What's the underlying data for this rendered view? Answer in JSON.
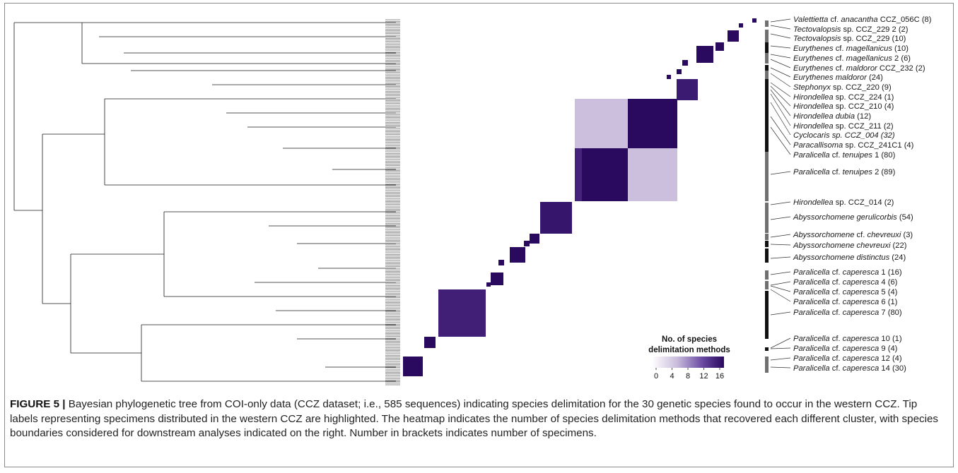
{
  "figure": {
    "caption_label": "FIGURE 5 |",
    "caption_text": " Bayesian phylogenetic tree from COI-only data (CCZ dataset; i.e., 585 sequences) indicating species delimitation for the 30 genetic species found to occur in the western CCZ. Tip labels representing specimens distributed in the western CCZ are highlighted. The heatmap indicates the number of species delimitation methods that recovered each different cluster, with species boundaries considered for downstream analyses indicated on the right. Number in brackets indicates number of specimens."
  },
  "colors": {
    "dark": "#2a0a5e",
    "mid": "#5d3a96",
    "light": "#cbbfdd",
    "line": "#1a1a1a",
    "bar_grey": "#707070",
    "bar_black": "#111111"
  },
  "legend": {
    "title_line1": "No. of species",
    "title_line2": "delimitation methods",
    "ticks": [
      "0",
      "4",
      "8",
      "12",
      "16"
    ],
    "range": [
      0,
      16
    ]
  },
  "species_labels": [
    {
      "italic": "Valettietta",
      "plain": " cf. ",
      "italic2": "anacantha",
      "rest": " CCZ_056C (8)"
    },
    {
      "italic": "Tectovalopsis",
      "plain": " sp. CCZ_229 2 (2)",
      "italic2": "",
      "rest": ""
    },
    {
      "italic": "Tectovalopsis",
      "plain": " sp. CCZ_229 (10)",
      "italic2": "",
      "rest": ""
    },
    {
      "italic": "Eurythenes",
      "plain": " cf. ",
      "italic2": "magellanicus",
      "rest": " (10)"
    },
    {
      "italic": "Eurythenes",
      "plain": " cf. ",
      "italic2": "magellanicus",
      "rest": " 2 (6)"
    },
    {
      "italic": "Eurythenes",
      "plain": " cf. ",
      "italic2": "maldoror",
      "rest": " CCZ_232 (2)"
    },
    {
      "italic": "Eurythenes maldoror",
      "plain": " (24)",
      "italic2": "",
      "rest": ""
    },
    {
      "italic": "Stephonyx",
      "plain": " sp. CCZ_220 (9)",
      "italic2": "",
      "rest": ""
    },
    {
      "italic": "Hirondellea",
      "plain": " sp. CCZ_224 (1)",
      "italic2": "",
      "rest": ""
    },
    {
      "italic": "Hirondellea",
      "plain": " sp. CCZ_210 (4)",
      "italic2": "",
      "rest": ""
    },
    {
      "italic": "Hirondellea dubia",
      "plain": " (12)",
      "italic2": "",
      "rest": ""
    },
    {
      "italic": "Hirondellea",
      "plain": " sp. CCZ_211 (2)",
      "italic2": "",
      "rest": ""
    },
    {
      "italic": "Cyclocaris sp. CCZ_004 (32)",
      "plain": "",
      "italic2": "",
      "rest": ""
    },
    {
      "italic": "Paracallisoma",
      "plain": " sp.  CCZ_241C1 (4)",
      "italic2": "",
      "rest": ""
    },
    {
      "italic": "Paralicella",
      "plain": " cf. ",
      "italic2": "tenuipes",
      "rest": " 1 (80)"
    },
    {
      "italic": "Paralicella",
      "plain": " cf. ",
      "italic2": "tenuipes",
      "rest": " 2 (89)"
    },
    {
      "italic": "Hirondellea",
      "plain": " sp. CCZ_014 (2)",
      "italic2": "",
      "rest": ""
    },
    {
      "italic": "Abyssorchomene gerulicorbis",
      "plain": " (54)",
      "italic2": "",
      "rest": ""
    },
    {
      "italic": "Abyssorchomene",
      "plain": " cf. ",
      "italic2": "chevreuxi",
      "rest": " (3)"
    },
    {
      "italic": "Abyssorchomene chevreuxi",
      "plain": " (22)",
      "italic2": "",
      "rest": ""
    },
    {
      "italic": "Abyssorchomene distinctus",
      "plain": " (24)",
      "italic2": "",
      "rest": ""
    },
    {
      "italic": "Paralicella",
      "plain": " cf. ",
      "italic2": "caperesca",
      "rest": " 1 (16)"
    },
    {
      "italic": "Paralicella",
      "plain": " cf. ",
      "italic2": "caperesca",
      "rest": " 4 (6)"
    },
    {
      "italic": "Paralicella",
      "plain": " cf. ",
      "italic2": "caperesca",
      "rest": " 5 (4)"
    },
    {
      "italic": "Paralicella",
      "plain": " cf. ",
      "italic2": "caperesca",
      "rest": " 6 (1)"
    },
    {
      "italic": "Paralicella",
      "plain": " cf. ",
      "italic2": "caperesca",
      "rest": " 7 (80)"
    },
    {
      "italic": "Paralicella",
      "plain": " cf. ",
      "italic2": "caperesca",
      "rest": " 10 (1)"
    },
    {
      "italic": "Paralicella",
      "plain": " cf. ",
      "italic2": "caperesca",
      "rest": " 9 (4)"
    },
    {
      "italic": "Paralicella",
      "plain": " cf. ",
      "italic2": "caperesca",
      "rest": " 12 (4)"
    },
    {
      "italic": "Paralicella",
      "plain": " cf. ",
      "italic2": "caperesca",
      "rest": " 14 (30)"
    }
  ]
}
